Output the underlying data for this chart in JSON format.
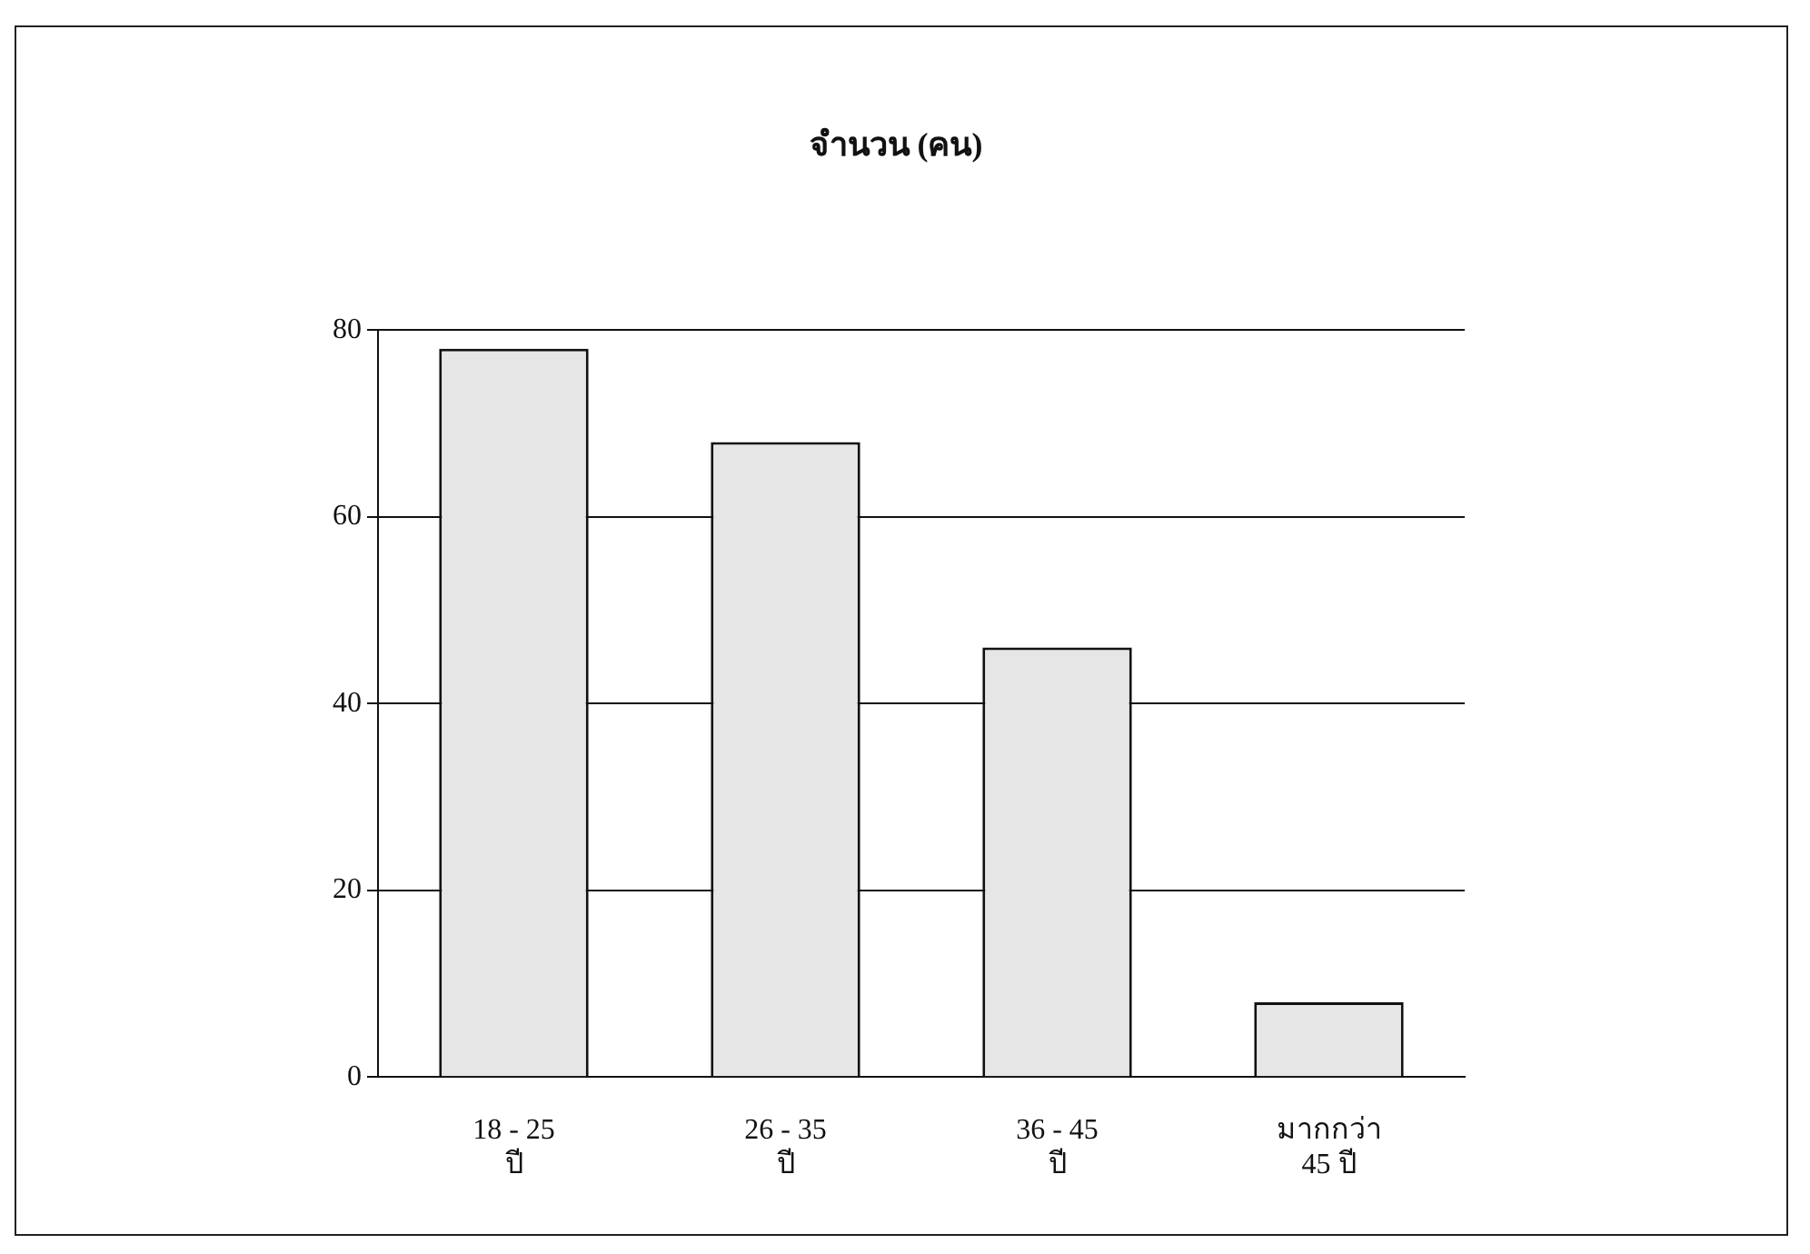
{
  "chart_data": {
    "type": "bar",
    "title": "จำนวน (คน)",
    "categories": [
      "18 - 25\nปี",
      "26 - 35\nปี",
      "36 - 45\nปี",
      "มากกว่า\n45 ปี"
    ],
    "values": [
      78,
      68,
      46,
      8
    ],
    "color": "#e6e6e6",
    "ylim": [
      0,
      80
    ],
    "yticks": [
      0,
      20,
      40,
      60,
      80
    ],
    "grid": "y"
  }
}
